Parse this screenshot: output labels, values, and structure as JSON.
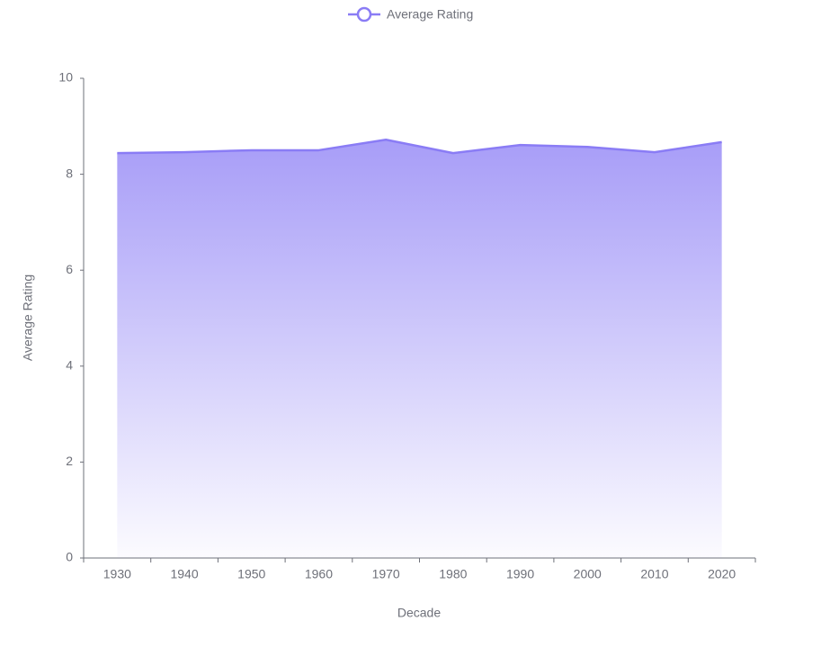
{
  "chart_data": {
    "type": "area",
    "x_label": "Decade",
    "y_label": "Average Rating",
    "categories": [
      "1930",
      "1940",
      "1950",
      "1960",
      "1970",
      "1980",
      "1990",
      "2000",
      "2010",
      "2020"
    ],
    "series": [
      {
        "name": "Average Rating",
        "color": "#8a7cf5",
        "values": [
          8.44,
          8.46,
          8.5,
          8.5,
          8.72,
          8.44,
          8.61,
          8.57,
          8.46,
          8.67
        ]
      }
    ],
    "ylim": [
      0,
      10
    ],
    "yticks": [
      0,
      2,
      4,
      6,
      8,
      10
    ],
    "grid": false,
    "legend": "top"
  }
}
